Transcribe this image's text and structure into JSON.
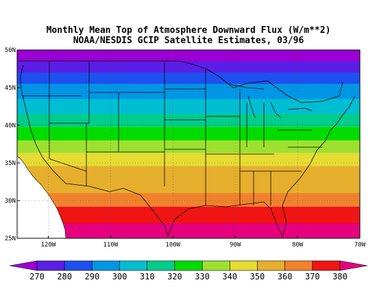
{
  "title_line1": "Monthly Mean Top of Atmosphere Downward Flux (W/m**2)",
  "title_line2": "NOAA/NESDIS GCIP Satellite Estimates, 03/96",
  "map": {
    "lon_range": [
      -125,
      -70
    ],
    "lat_range": [
      25,
      50
    ],
    "lat_ticks": [
      {
        "value": 50,
        "label": "50N"
      },
      {
        "value": 45,
        "label": "45N"
      },
      {
        "value": 40,
        "label": "40N"
      },
      {
        "value": 35,
        "label": "35N"
      },
      {
        "value": 30,
        "label": "30N"
      },
      {
        "value": 25,
        "label": "25N"
      }
    ],
    "lon_ticks": [
      {
        "value": -120,
        "label": "120W"
      },
      {
        "value": -110,
        "label": "110W"
      },
      {
        "value": -100,
        "label": "100W"
      },
      {
        "value": -90,
        "label": "90W"
      },
      {
        "value": -80,
        "label": "80W"
      },
      {
        "value": -70,
        "label": "70W"
      }
    ],
    "bands": [
      {
        "lat_min": 48.5,
        "lat_max": 50.0,
        "color": "#9a00d4"
      },
      {
        "lat_min": 47.0,
        "lat_max": 48.5,
        "color": "#5a1ee6"
      },
      {
        "lat_min": 45.5,
        "lat_max": 47.0,
        "color": "#1e50f0"
      },
      {
        "lat_min": 43.5,
        "lat_max": 45.5,
        "color": "#0096e6"
      },
      {
        "lat_min": 41.5,
        "lat_max": 43.5,
        "color": "#00bed2"
      },
      {
        "lat_min": 39.8,
        "lat_max": 41.5,
        "color": "#00cc8c"
      },
      {
        "lat_min": 38.0,
        "lat_max": 39.8,
        "color": "#00dc00"
      },
      {
        "lat_min": 36.3,
        "lat_max": 38.0,
        "color": "#9ee030"
      },
      {
        "lat_min": 34.6,
        "lat_max": 36.3,
        "color": "#e6dc32"
      },
      {
        "lat_min": 31.0,
        "lat_max": 34.6,
        "color": "#e6af2d"
      },
      {
        "lat_min": 29.2,
        "lat_max": 31.0,
        "color": "#f0822d"
      },
      {
        "lat_min": 27.0,
        "lat_max": 29.2,
        "color": "#f01414"
      },
      {
        "lat_min": 25.0,
        "lat_max": 27.0,
        "color": "#e6007d"
      }
    ]
  },
  "colorbar": {
    "labels": [
      "270",
      "280",
      "290",
      "300",
      "310",
      "320",
      "330",
      "340",
      "350",
      "360",
      "370",
      "380"
    ],
    "colors": [
      "#9a00d4",
      "#5a1ee6",
      "#1e50f0",
      "#0096e6",
      "#00bed2",
      "#00cc8c",
      "#00dc00",
      "#9ee030",
      "#e6dc32",
      "#e6af2d",
      "#f0822d",
      "#f01414",
      "#e6007d"
    ]
  }
}
